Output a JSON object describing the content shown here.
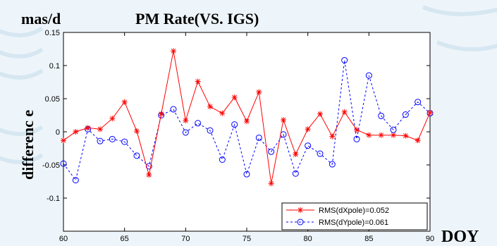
{
  "chart_data": {
    "type": "line",
    "title": "PM Rate(VS. IGS)",
    "unit_label": "mas/d",
    "xlabel": "DOY",
    "ylabel": "differenc e",
    "xlim": [
      60,
      90
    ],
    "ylim": [
      -0.15,
      0.15
    ],
    "xticks": [
      "60",
      "65",
      "70",
      "75",
      "80",
      "85",
      "90"
    ],
    "yticks": [
      "0.15",
      "0.1",
      "0.05",
      "0",
      "-0.05",
      "-0.1"
    ],
    "x": [
      60,
      61,
      62,
      63,
      64,
      65,
      66,
      67,
      68,
      69,
      70,
      71,
      72,
      73,
      74,
      75,
      76,
      77,
      78,
      79,
      80,
      81,
      82,
      83,
      84,
      85,
      86,
      87,
      88,
      89,
      90
    ],
    "series": [
      {
        "name": "RMS(dXpole)=0.052",
        "color": "#ff0000",
        "marker": "star",
        "line": "solid",
        "values": [
          -0.013,
          0.0,
          0.006,
          0.004,
          0.02,
          0.045,
          0.001,
          -0.065,
          0.027,
          0.122,
          0.017,
          0.076,
          0.038,
          0.028,
          0.052,
          0.016,
          0.06,
          -0.078,
          0.018,
          -0.034,
          0.004,
          0.027,
          -0.007,
          0.03,
          0.003,
          -0.005,
          -0.005,
          -0.005,
          -0.006,
          -0.013,
          0.029
        ]
      },
      {
        "name": "RMS(dYpole)=0.061",
        "color": "#0000ff",
        "marker": "circle",
        "line": "dashed",
        "values": [
          -0.048,
          -0.073,
          0.004,
          -0.014,
          -0.011,
          -0.015,
          -0.036,
          -0.052,
          0.025,
          0.034,
          -0.001,
          0.013,
          0.002,
          -0.042,
          0.011,
          -0.064,
          -0.009,
          -0.03,
          -0.004,
          -0.063,
          -0.021,
          -0.033,
          -0.049,
          0.108,
          -0.011,
          0.085,
          0.024,
          0.003,
          0.026,
          0.045,
          0.028
        ]
      }
    ],
    "grid": false,
    "legend_position": "bottom-right"
  }
}
